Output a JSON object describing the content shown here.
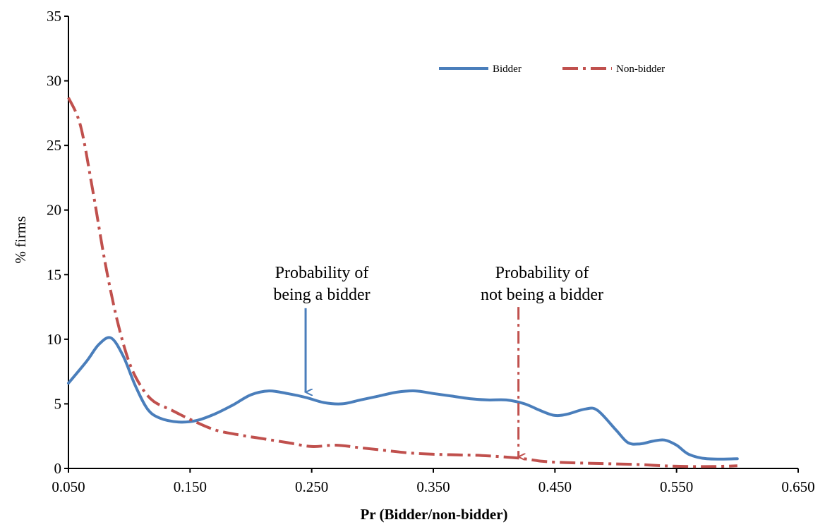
{
  "chart_data": {
    "type": "line",
    "title": "",
    "xlabel": "Pr (Bidder/non-bidder)",
    "ylabel": "% firms",
    "xlim": [
      0.05,
      0.65
    ],
    "ylim": [
      0,
      35
    ],
    "x_ticks": [
      "0.050",
      "0.150",
      "0.250",
      "0.350",
      "0.450",
      "0.550",
      "0.650"
    ],
    "y_ticks": [
      "0",
      "5",
      "10",
      "15",
      "20",
      "25",
      "30",
      "35"
    ],
    "grid": false,
    "legend_position": "top-right",
    "series": [
      {
        "name": "Bidder",
        "color": "#4a7ebb",
        "style": "solid",
        "x": [
          0.05,
          0.065,
          0.075,
          0.085,
          0.095,
          0.105,
          0.115,
          0.125,
          0.14,
          0.155,
          0.17,
          0.185,
          0.2,
          0.215,
          0.23,
          0.245,
          0.26,
          0.275,
          0.29,
          0.305,
          0.32,
          0.335,
          0.35,
          0.365,
          0.38,
          0.395,
          0.41,
          0.425,
          0.44,
          0.45,
          0.46,
          0.475,
          0.485,
          0.5,
          0.51,
          0.52,
          0.53,
          0.54,
          0.55,
          0.56,
          0.575,
          0.6
        ],
        "y": [
          6.6,
          8.3,
          9.6,
          10.1,
          8.7,
          6.4,
          4.6,
          3.9,
          3.6,
          3.7,
          4.2,
          4.9,
          5.7,
          6.0,
          5.8,
          5.5,
          5.1,
          5.0,
          5.3,
          5.6,
          5.9,
          6.0,
          5.8,
          5.6,
          5.4,
          5.3,
          5.3,
          5.0,
          4.4,
          4.1,
          4.2,
          4.6,
          4.5,
          3.0,
          2.0,
          1.9,
          2.1,
          2.2,
          1.8,
          1.1,
          0.75,
          0.75
        ]
      },
      {
        "name": "Non-bidder",
        "color": "#c0504d",
        "style": "dash-dot",
        "x": [
          0.05,
          0.06,
          0.07,
          0.08,
          0.09,
          0.1,
          0.11,
          0.12,
          0.135,
          0.15,
          0.17,
          0.19,
          0.21,
          0.23,
          0.25,
          0.27,
          0.29,
          0.31,
          0.33,
          0.35,
          0.37,
          0.39,
          0.42,
          0.44,
          0.46,
          0.48,
          0.5,
          0.52,
          0.54,
          0.56,
          0.58,
          0.6
        ],
        "y": [
          28.7,
          26.5,
          21.5,
          16.0,
          11.5,
          8.2,
          6.3,
          5.2,
          4.5,
          3.8,
          3.0,
          2.6,
          2.3,
          2.0,
          1.7,
          1.8,
          1.6,
          1.4,
          1.2,
          1.1,
          1.05,
          1.0,
          0.8,
          0.55,
          0.45,
          0.4,
          0.35,
          0.3,
          0.2,
          0.15,
          0.15,
          0.2
        ]
      }
    ],
    "annotations": [
      {
        "name": "annotation-bidder",
        "lines": [
          "Probability of",
          "being a bidder"
        ],
        "arrow_to": [
          0.245,
          5.9
        ],
        "arrow_from_y": 12.4,
        "color": "#4a7ebb",
        "style": "solid"
      },
      {
        "name": "annotation-nonbidder",
        "lines": [
          "Probability of",
          "not being a bidder"
        ],
        "arrow_to": [
          0.42,
          0.9
        ],
        "arrow_from_y": 12.5,
        "color": "#c0504d",
        "style": "dash-dot"
      }
    ]
  }
}
